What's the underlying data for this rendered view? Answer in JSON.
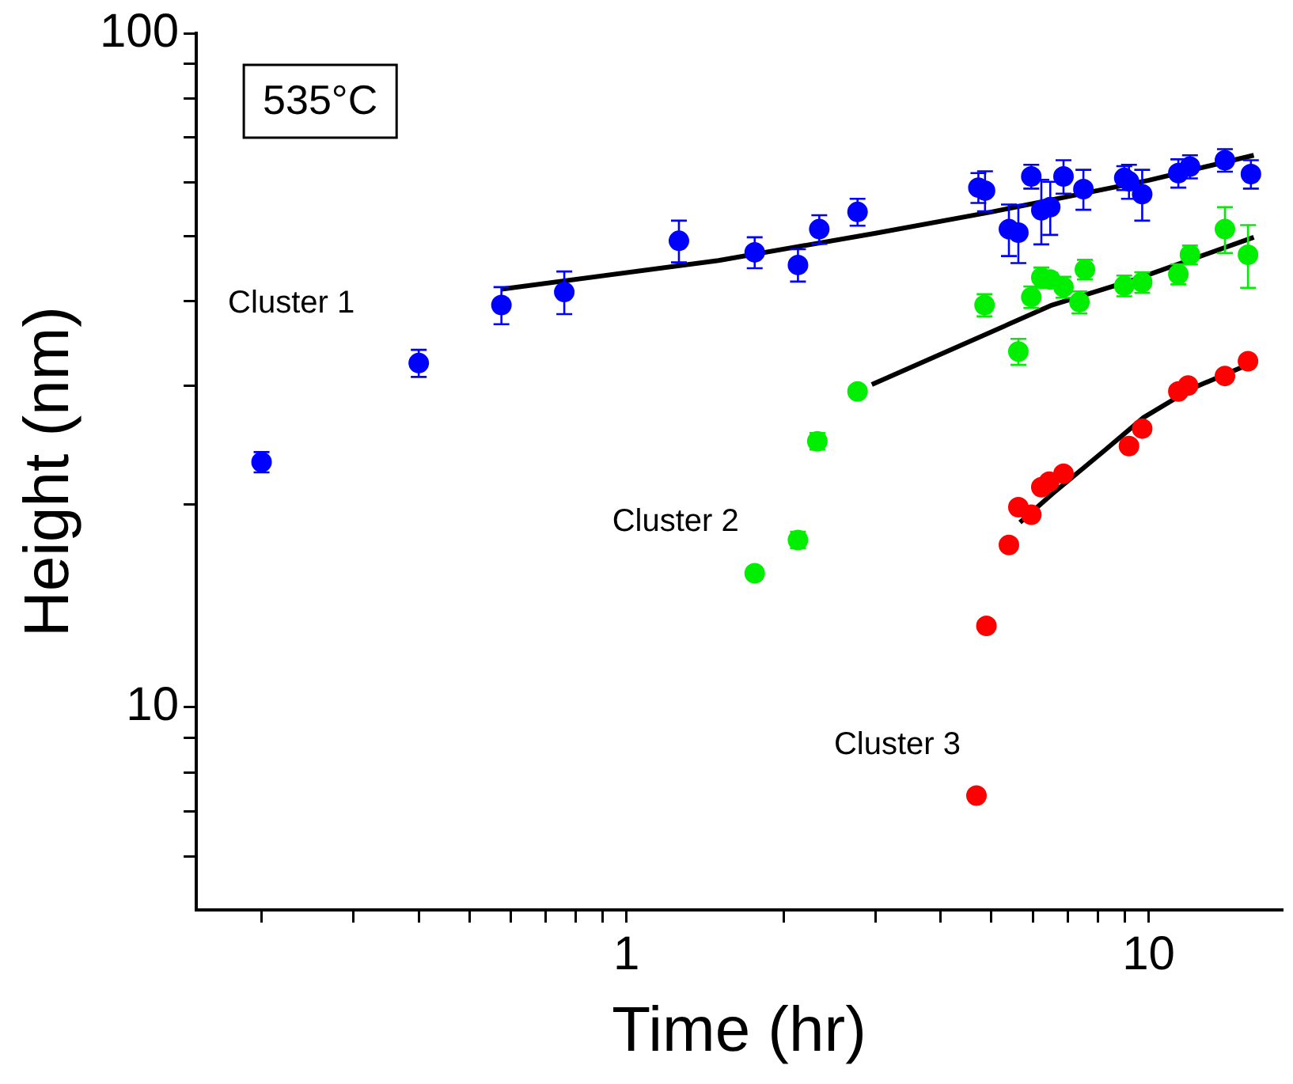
{
  "chart_data": {
    "type": "scatter",
    "xlabel": "Time (hr)",
    "ylabel": "Height (nm)",
    "log": "xy",
    "xlim": [
      0.15,
      18
    ],
    "ylim": [
      5,
      100
    ],
    "xticks": [
      {
        "value": 0.2,
        "label": null
      },
      {
        "value": 0.3,
        "label": null
      },
      {
        "value": 0.4,
        "label": null
      },
      {
        "value": 0.5,
        "label": null
      },
      {
        "value": 0.6,
        "label": null
      },
      {
        "value": 0.7,
        "label": null
      },
      {
        "value": 0.8,
        "label": null
      },
      {
        "value": 0.9,
        "label": null
      },
      1,
      {
        "value": 2,
        "label": null
      },
      {
        "value": 3,
        "label": null
      },
      {
        "value": 4,
        "label": null
      },
      {
        "value": 5,
        "label": null
      },
      {
        "value": 6,
        "label": null
      },
      {
        "value": 7,
        "label": null
      },
      {
        "value": 8,
        "label": null
      },
      {
        "value": 9,
        "label": null
      },
      10
    ],
    "yticks": [
      {
        "value": 6,
        "label": null
      },
      {
        "value": 7,
        "label": null
      },
      {
        "value": 8,
        "label": null
      },
      {
        "value": 9,
        "label": null
      },
      10,
      {
        "value": 20,
        "label": null
      },
      {
        "value": 30,
        "label": null
      },
      {
        "value": 40,
        "label": null
      },
      {
        "value": 50,
        "label": null
      },
      {
        "value": 60,
        "label": null
      },
      {
        "value": 70,
        "label": null
      },
      {
        "value": 80,
        "label": null
      },
      {
        "value": 90,
        "label": null
      },
      100
    ],
    "grid": false,
    "legend": false,
    "marker": "circle",
    "series": [
      {
        "name": "Cluster 1",
        "color": "#0000ff",
        "x": [
          0.2,
          0.4,
          0.576,
          0.76,
          1.26,
          1.76,
          2.13,
          2.34,
          2.77,
          4.72,
          4.86,
          5.4,
          5.63,
          5.96,
          6.23,
          6.48,
          6.87,
          7.5,
          8.98,
          9.17,
          9.72,
          11.4,
          12.0,
          14.0,
          15.7
        ],
        "values": [
          23.1,
          32.4,
          39.5,
          41.3,
          49.2,
          47.3,
          45.3,
          51.2,
          54.3,
          59,
          58.4,
          51.2,
          50.6,
          61.3,
          54.6,
          55.2,
          61.3,
          58.7,
          61,
          60.3,
          57.7,
          62,
          63.4,
          64.8,
          61.8
        ],
        "errors": [
          0.8,
          1.5,
          2.5,
          3,
          3.5,
          2.5,
          2.5,
          2.5,
          2.5,
          3,
          4,
          4.5,
          5,
          2.5,
          6,
          5,
          3.5,
          4,
          2.5,
          3.5,
          5,
          3,
          2.5,
          2.5,
          3
        ]
      },
      {
        "name": "Cluster 2",
        "color": "#00ee00",
        "x": [
          1.76,
          2.13,
          2.32,
          2.77,
          4.85,
          5.63,
          5.96,
          6.23,
          6.48,
          6.87,
          7.37,
          7.55,
          8.98,
          9.72,
          11.4,
          12.0,
          14.0,
          15.5
        ],
        "values": [
          15.8,
          17.7,
          24.8,
          29.4,
          39.5,
          33.7,
          40.6,
          43.4,
          43.1,
          42,
          39.9,
          44.6,
          42.2,
          42.7,
          43.9,
          46.9,
          51.2,
          46.9
        ],
        "errors": [
          0.3,
          0.5,
          0.7,
          0.5,
          1.5,
          1.5,
          1.5,
          1.5,
          1,
          1.5,
          1.5,
          1.5,
          1.5,
          1.5,
          1.5,
          1.5,
          4,
          5
        ]
      },
      {
        "name": "Cluster 3",
        "color": "#ff0000",
        "x": [
          4.68,
          4.89,
          5.4,
          5.63,
          5.96,
          6.23,
          6.45,
          6.87,
          9.17,
          9.72,
          11.4,
          11.9,
          14.0,
          15.5
        ],
        "values": [
          7.39,
          13.2,
          17.4,
          19.8,
          19.3,
          21.2,
          21.6,
          22.2,
          24.4,
          25.9,
          29.4,
          30,
          31,
          32.6
        ]
      },
      {
        "type": "line",
        "marker": "none",
        "color": "#000000",
        "x": [
          0.576,
          1.5,
          3,
          5,
          10,
          15.9
        ],
        "values": [
          41.7,
          46,
          50.5,
          54.3,
          60.5,
          65.9
        ]
      },
      {
        "type": "line",
        "marker": "none",
        "color": "#000000",
        "x": [
          2.95,
          6.53,
          9.5,
          15.9
        ],
        "values": [
          30.1,
          39.5,
          43.2,
          49.8
        ]
      },
      {
        "type": "line",
        "marker": "none",
        "color": "#000000",
        "x": [
          5.67,
          6.53,
          8.27,
          9.78,
          12.1,
          15.9
        ],
        "values": [
          18.8,
          20.7,
          24.1,
          26.9,
          29.7,
          32.5
        ]
      }
    ],
    "annotations": [
      "535°C"
    ]
  }
}
